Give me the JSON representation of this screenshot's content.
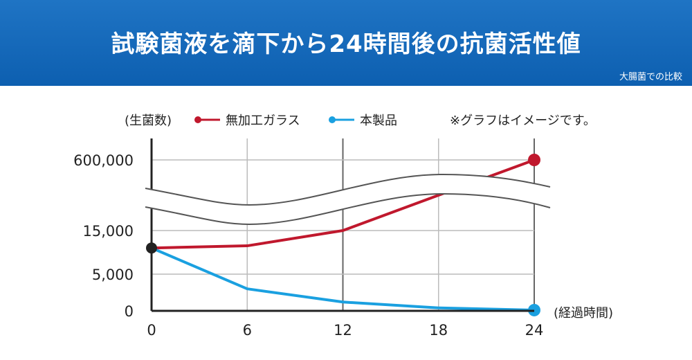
{
  "header": {
    "title": "試験菌液を滴下から24時間後の抗菌活性値",
    "subtitle": "大腸菌での比較"
  },
  "note": "※グラフはイメージです。",
  "colors": {
    "banner": "#0d63b5",
    "series_glass": "#c0182d",
    "series_product": "#1aa0e0",
    "grid": "#bbbbbb",
    "grid_major": "#666666",
    "axis": "#222222"
  },
  "chart_data": {
    "type": "line",
    "title": "",
    "ylabel": "(生菌数)",
    "xlabel": "(経過時間)",
    "x": [
      0,
      6,
      12,
      18,
      24
    ],
    "x_ticks": [
      "0",
      "6",
      "12",
      "18",
      "24"
    ],
    "y_ticks": [
      {
        "value": 0,
        "label": "0"
      },
      {
        "value": 5000,
        "label": "5,000"
      },
      {
        "value": 15000,
        "label": "15,000"
      },
      {
        "value": 600000,
        "label": "600,000"
      }
    ],
    "axis_break": "between 15,000 and 600,000",
    "series": [
      {
        "name": "無加工ガラス",
        "color": "#c0182d",
        "points": [
          [
            0,
            11000
          ],
          [
            6,
            11500
          ],
          [
            12,
            15000
          ],
          [
            24,
            600000
          ]
        ]
      },
      {
        "name": "本製品",
        "color": "#1aa0e0",
        "points": [
          [
            0,
            11000
          ],
          [
            6,
            3000
          ],
          [
            12,
            1200
          ],
          [
            18,
            400
          ],
          [
            24,
            100
          ]
        ]
      }
    ],
    "legend_position": "top"
  }
}
